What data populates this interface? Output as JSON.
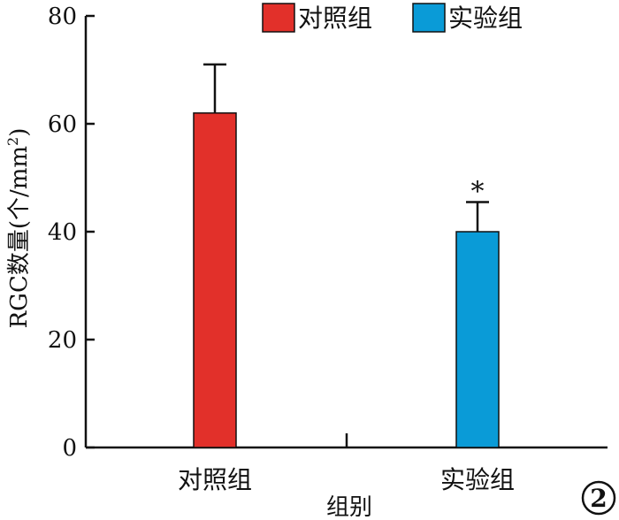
{
  "chart_data": {
    "type": "bar",
    "categories": [
      "对照组",
      "实验组"
    ],
    "series": [
      {
        "values": [
          62,
          40
        ]
      }
    ],
    "error": [
      9,
      5.5
    ],
    "colors": [
      "#e2302a",
      "#0a9bd7"
    ],
    "legend": [
      "对照组",
      "实验组"
    ],
    "annotations": [
      "",
      "*"
    ],
    "xlabel": "组别",
    "ylabel_main": "RGC数量(个/mm",
    "ylabel_sup": "2",
    "ylabel_close": ")",
    "ylim": [
      0,
      80
    ],
    "yticks": [
      0,
      20,
      40,
      60,
      80
    ],
    "panel_number": "2",
    "grid": false,
    "legend_position": "top-right"
  }
}
